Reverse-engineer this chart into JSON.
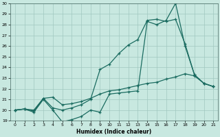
{
  "xlabel": "Humidex (Indice chaleur)",
  "xlim": [
    -0.5,
    21.5
  ],
  "ylim": [
    19,
    30
  ],
  "xticks": [
    0,
    1,
    2,
    3,
    4,
    5,
    6,
    7,
    8,
    9,
    10,
    11,
    12,
    13,
    14,
    15,
    16,
    17,
    18,
    19,
    20,
    21
  ],
  "yticks": [
    19,
    20,
    21,
    22,
    23,
    24,
    25,
    26,
    27,
    28,
    29,
    30
  ],
  "bg_color": "#c8e8e0",
  "grid_color": "#a0c8c0",
  "line_color": "#1a6b60",
  "line1_x": [
    0,
    1,
    2,
    3,
    4,
    5,
    6,
    7,
    8,
    9,
    10,
    11,
    12,
    13,
    14,
    15,
    16,
    17,
    18,
    19,
    20,
    21
  ],
  "line1_y": [
    20.0,
    20.1,
    19.8,
    21.0,
    20.0,
    18.9,
    19.1,
    19.4,
    20.0,
    19.8,
    21.5,
    21.6,
    21.7,
    21.8,
    28.3,
    28.0,
    28.4,
    30.0,
    26.0,
    23.3,
    22.5,
    22.2
  ],
  "line2_x": [
    0,
    1,
    2,
    3,
    4,
    5,
    6,
    7,
    8,
    9,
    10,
    11,
    12,
    13,
    14,
    15,
    16,
    17,
    18,
    19,
    20,
    21
  ],
  "line2_y": [
    20.0,
    20.1,
    19.9,
    21.1,
    20.2,
    20.0,
    20.2,
    20.5,
    21.0,
    23.8,
    24.3,
    25.3,
    26.1,
    26.6,
    28.4,
    28.5,
    28.3,
    28.5,
    26.2,
    23.3,
    22.5,
    22.2
  ],
  "line3_x": [
    0,
    1,
    2,
    3,
    4,
    5,
    6,
    7,
    8,
    9,
    10,
    11,
    12,
    13,
    14,
    15,
    16,
    17,
    18,
    19,
    20,
    21
  ],
  "line3_y": [
    20.0,
    20.1,
    20.0,
    21.1,
    21.2,
    20.5,
    20.6,
    20.8,
    21.1,
    21.5,
    21.8,
    21.9,
    22.1,
    22.3,
    22.5,
    22.6,
    22.9,
    23.1,
    23.4,
    23.2,
    22.5,
    22.2
  ]
}
